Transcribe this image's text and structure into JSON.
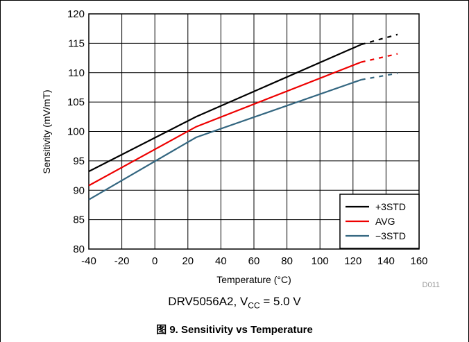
{
  "chart_data": {
    "type": "line",
    "xlabel": "Temperature (°C)",
    "ylabel": "Sensitivity (mV/mT)",
    "xlim": [
      -40,
      160
    ],
    "ylim": [
      80,
      120
    ],
    "x_ticks": [
      "-40",
      "-20",
      "0",
      "20",
      "40",
      "60",
      "80",
      "100",
      "120",
      "140",
      "160"
    ],
    "y_ticks": [
      "80",
      "85",
      "90",
      "95",
      "100",
      "105",
      "110",
      "115",
      "120"
    ],
    "grid": true,
    "legend_position": "bottom-right",
    "series": [
      {
        "name": "+3STD",
        "color": "#000000",
        "solid": [
          [
            -40,
            93.2
          ],
          [
            25,
            102.5
          ],
          [
            125,
            114.8
          ]
        ],
        "dashed": [
          [
            125,
            114.8
          ],
          [
            147,
            116.5
          ]
        ]
      },
      {
        "name": "AVG",
        "color": "#ee0000",
        "solid": [
          [
            -40,
            90.8
          ],
          [
            25,
            100.8
          ],
          [
            125,
            111.8
          ]
        ],
        "dashed": [
          [
            125,
            111.8
          ],
          [
            147,
            113.2
          ]
        ]
      },
      {
        "name": "−3STD",
        "color": "#336680",
        "solid": [
          [
            -40,
            88.4
          ],
          [
            25,
            99.0
          ],
          [
            125,
            108.8
          ]
        ],
        "dashed": [
          [
            125,
            108.8
          ],
          [
            147,
            109.9
          ]
        ]
      }
    ],
    "code": "D011"
  },
  "subtitle": {
    "prefix": "DRV5056A2, V",
    "sub": "CC",
    "suffix": " = 5.0 V"
  },
  "caption": "图 9. Sensitivity vs Temperature"
}
